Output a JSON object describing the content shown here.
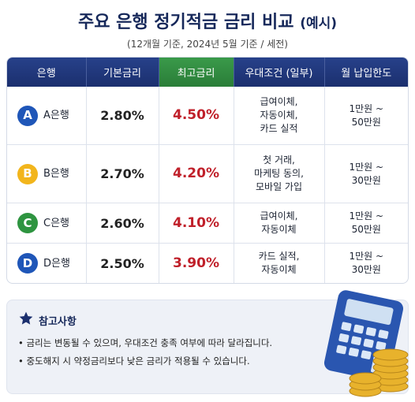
{
  "header": {
    "title": "주요 은행 정기적금 금리 비교",
    "title_suffix": "(예시)",
    "subtitle": "(12개월 기준, 2024년 5월 기준 / 세전)"
  },
  "table": {
    "columns": [
      "은행",
      "기본금리",
      "최고금리",
      "우대조건 (일부)",
      "월 납입한도"
    ],
    "rows": [
      {
        "badge": "A",
        "color": "#1f56b8",
        "bank": "A은행",
        "base": "2.80%",
        "max": "4.50%",
        "conditions": [
          "급여이체,",
          "자동이체,",
          "카드 실적"
        ],
        "limit": [
          "1만원 ~",
          "50만원"
        ]
      },
      {
        "badge": "B",
        "color": "#f2b51c",
        "bank": "B은행",
        "base": "2.70%",
        "max": "4.20%",
        "conditions": [
          "첫 거래,",
          "마케팅 동의,",
          "모바일 가입"
        ],
        "limit": [
          "1만원 ~",
          "30만원"
        ]
      },
      {
        "badge": "C",
        "color": "#2e9440",
        "bank": "C은행",
        "base": "2.60%",
        "max": "4.10%",
        "conditions": [
          "급여이체,",
          "자동이체"
        ],
        "limit": [
          "1만원 ~",
          "50만원"
        ]
      },
      {
        "badge": "D",
        "color": "#1f56b8",
        "bank": "D은행",
        "base": "2.50%",
        "max": "3.90%",
        "conditions": [
          "카드 실적,",
          "자동이체"
        ],
        "limit": [
          "1만원 ~",
          "30만원"
        ]
      }
    ]
  },
  "notes": {
    "title": "참고사항",
    "items": [
      "금리는 변동될 수 있으며, 우대조건 충족 여부에 따라 달라집니다.",
      "중도해지 시 약정금리보다 낮은 금리가 적용될 수 있습니다."
    ]
  }
}
